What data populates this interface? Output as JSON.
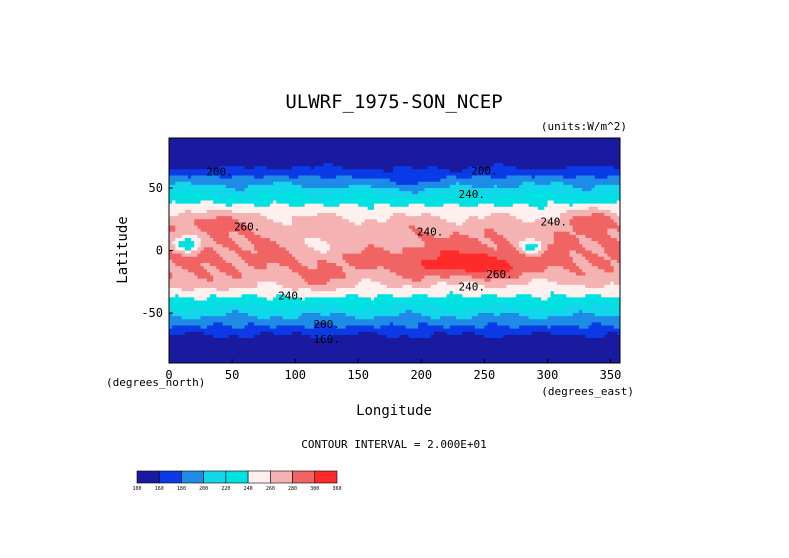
{
  "chart_data": {
    "type": "contour",
    "title": "ULWRF_1975-SON_NCEP",
    "units_note": "(units:W/m^2)",
    "xlabel": "Longitude",
    "ylabel": "Latitude",
    "x_unit_note": "(degrees_east)",
    "y_unit_note": "(degrees_north)",
    "xlim": [
      0,
      357.5
    ],
    "ylim": [
      -90,
      90
    ],
    "x_ticks": [
      0,
      50,
      100,
      150,
      200,
      250,
      300,
      350
    ],
    "y_ticks": [
      50,
      0,
      -50
    ],
    "contour_interval_text": "CONTOUR INTERVAL = 2.000E+01",
    "colorbar": {
      "levels": [
        100,
        160,
        180,
        200,
        220,
        240,
        260,
        280,
        300,
        360
      ],
      "tick_labels": [
        "100",
        "160",
        "180",
        "200",
        "220",
        "240",
        "260",
        "280",
        "300",
        "360"
      ],
      "colors": [
        "#1a1aa0",
        "#0a3be6",
        "#1e8ce6",
        "#12d7eb",
        "#00e1e1",
        "#fff0f0",
        "#f5b2b2",
        "#f06464",
        "#ff2a2a"
      ]
    },
    "contour_labels": [
      {
        "text": "200.",
        "lon": 40,
        "lat": 60
      },
      {
        "text": "200.",
        "lon": 250,
        "lat": 61
      },
      {
        "text": "240.",
        "lon": 240,
        "lat": 42
      },
      {
        "text": "240.",
        "lon": 305,
        "lat": 20
      },
      {
        "text": "240.",
        "lon": 207,
        "lat": 12
      },
      {
        "text": "260.",
        "lon": 62,
        "lat": 16
      },
      {
        "text": "260.",
        "lon": 262,
        "lat": -22
      },
      {
        "text": "240.",
        "lon": 240,
        "lat": -32
      },
      {
        "text": "240.",
        "lon": 97,
        "lat": -39
      },
      {
        "text": "200.",
        "lon": 125,
        "lat": -62
      },
      {
        "text": "160.",
        "lon": 125,
        "lat": -74
      }
    ]
  }
}
